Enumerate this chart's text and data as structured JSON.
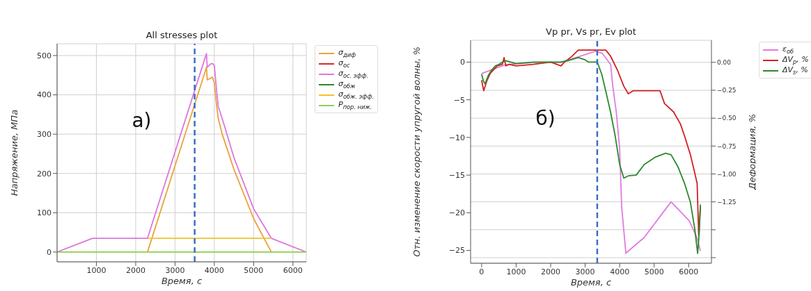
{
  "chart_data": [
    {
      "type": "line",
      "title": "All stresses plot",
      "xlabel": "Время, с",
      "ylabel": "Напряжение, МПа",
      "xlim": [
        0,
        6340
      ],
      "xticks": [
        1000,
        2000,
        3000,
        4000,
        5000,
        6000
      ],
      "ylim": [
        -25,
        530
      ],
      "yticks": [
        0,
        100,
        200,
        300,
        400,
        500
      ],
      "grid": true,
      "legend": "right",
      "annotations": [
        "a)"
      ],
      "ref_lines": [
        {
          "axis": "x",
          "value": 3500,
          "color": "#3a6fc4",
          "line_style": "dashed"
        }
      ],
      "series": [
        {
          "name": "σ$_{диф}$",
          "color": "#e8a33a",
          "x": [
            2300,
            3800,
            3820,
            3900,
            3950,
            4000,
            4050,
            4100,
            4200,
            4500,
            5000,
            5450
          ],
          "values": [
            0,
            470,
            438,
            442,
            445,
            430,
            380,
            340,
            300,
            210,
            85,
            0
          ]
        },
        {
          "name": "σ$_{ос}$",
          "color": "#d62728"
        },
        {
          "name": "σ$_{ос. эфф.}$",
          "color": "#dd77dd",
          "x": [
            0,
            900,
            2300,
            3800,
            3820,
            3900,
            3950,
            4000,
            4050,
            4100,
            4200,
            4500,
            5000,
            5450,
            6340
          ],
          "values": [
            0,
            35,
            35,
            505,
            470,
            478,
            480,
            475,
            420,
            370,
            340,
            240,
            110,
            35,
            0
          ]
        },
        {
          "name": "σ$_{обж}$",
          "color": "#2a8a2a"
        },
        {
          "name": "σ$_{обж. эфф.}$",
          "color": "#f2c12e",
          "x": [
            2300,
            5450
          ],
          "values": [
            35,
            35
          ]
        },
        {
          "name": "P$_{пор. ниж.}$",
          "color": "#8fd14f",
          "x": [
            0,
            6340
          ],
          "values": [
            0,
            0
          ]
        }
      ]
    },
    {
      "type": "line",
      "title": "Vp pr, Vs pr,  Ev plot",
      "xlabel": "Время, с",
      "ylabel": "Отн. изменение скорости упругой волны, %",
      "y2label": "Деформация, %",
      "xlim": [
        -320,
        6660
      ],
      "xticks": [
        0,
        1000,
        2000,
        3000,
        4000,
        5000,
        6000
      ],
      "ylim": [
        -26.7,
        2.9
      ],
      "yticks": [
        {
          "value": 0,
          "label": "0"
        },
        {
          "value": -5,
          "label": "−5"
        },
        {
          "value": -10,
          "label": "−10"
        },
        {
          "value": -15,
          "label": "−15"
        },
        {
          "value": -20,
          "label": "−20"
        },
        {
          "value": -25,
          "label": "−25"
        }
      ],
      "y2lim": [
        -1.8,
        0.198
      ],
      "y2ticks": [
        {
          "value": 0,
          "label": "0.00"
        },
        {
          "value": -0.25,
          "label": "−0.25"
        },
        {
          "value": -0.5,
          "label": "−0.50"
        },
        {
          "value": -0.75,
          "label": "−0.75"
        },
        {
          "value": -1,
          "label": "−1.00"
        },
        {
          "value": -1.25,
          "label": "−1.25"
        },
        {
          "value": -1.5,
          "label": null
        },
        {
          "value": -1.75,
          "label": null
        }
      ],
      "grid": "y2",
      "legend": "right",
      "annotations": [
        "б)"
      ],
      "ref_lines": [
        {
          "axis": "x",
          "value": 3350,
          "color": "#3a6fc4",
          "line_style": "dashed"
        }
      ],
      "series": [
        {
          "name": "ε$_{об}$",
          "color": "#e07be0",
          "axis": "y2",
          "x": [
            0,
            700,
            1500,
            2300,
            2800,
            3300,
            3500,
            3740,
            3800,
            3900,
            3997,
            4060,
            4180,
            4710,
            5490,
            6015,
            6240,
            6340
          ],
          "values": [
            -0.1,
            -0.02,
            0,
            0,
            0.05,
            0.1,
            0.08,
            -0.02,
            -0.21,
            -0.44,
            -0.76,
            -1.3,
            -1.71,
            -1.57,
            -1.25,
            -1.42,
            -1.57,
            -1.69
          ]
        },
        {
          "name": "ΔV$_{p}$, %",
          "color": "#d22020",
          "x": [
            0,
            60,
            150,
            250,
            350,
            450,
            600,
            650,
            700,
            800,
            1000,
            1500,
            2000,
            2300,
            2400,
            2600,
            2800,
            3000,
            3600,
            3735,
            3930,
            4120,
            4250,
            4390,
            5170,
            5300,
            5560,
            5760,
            5880,
            6050,
            6150,
            6245,
            6290,
            6340
          ],
          "values": [
            -2.4,
            -3.8,
            -2.5,
            -1.5,
            -1,
            -0.5,
            -0.3,
            0.6,
            -0.5,
            -0.3,
            -0.5,
            -0.3,
            0,
            -0.5,
            0,
            0.7,
            1.6,
            1.6,
            1.6,
            0.8,
            -1,
            -3.2,
            -4.2,
            -3.8,
            -3.8,
            -5.5,
            -6.6,
            -8.2,
            -9.8,
            -12.3,
            -14.2,
            -16.1,
            -23,
            -19.2
          ]
        },
        {
          "name": "ΔV$_{s}$, %",
          "color": "#2a8a2a",
          "x": [
            0,
            50,
            100,
            200,
            300,
            400,
            500,
            600,
            700,
            1000,
            1500,
            2000,
            2300,
            2500,
            2800,
            3000,
            3100,
            3350,
            3480,
            3610,
            3735,
            3870,
            4000,
            4120,
            4250,
            4480,
            4710,
            5040,
            5330,
            5490,
            5690,
            5880,
            6050,
            6175,
            6260,
            6310,
            6340
          ],
          "values": [
            -1.6,
            -2.5,
            -2.9,
            -1.7,
            -1,
            -0.5,
            -0.3,
            0,
            0.2,
            -0.2,
            0,
            0,
            0,
            0.2,
            0.6,
            0.3,
            0,
            0,
            -1.6,
            -4.1,
            -6.6,
            -9.8,
            -13.6,
            -15.4,
            -15.1,
            -15,
            -13.6,
            -12.6,
            -12.1,
            -12.3,
            -13.9,
            -16.1,
            -18.6,
            -22.1,
            -25.4,
            -22.4,
            -18.9
          ]
        }
      ]
    }
  ]
}
